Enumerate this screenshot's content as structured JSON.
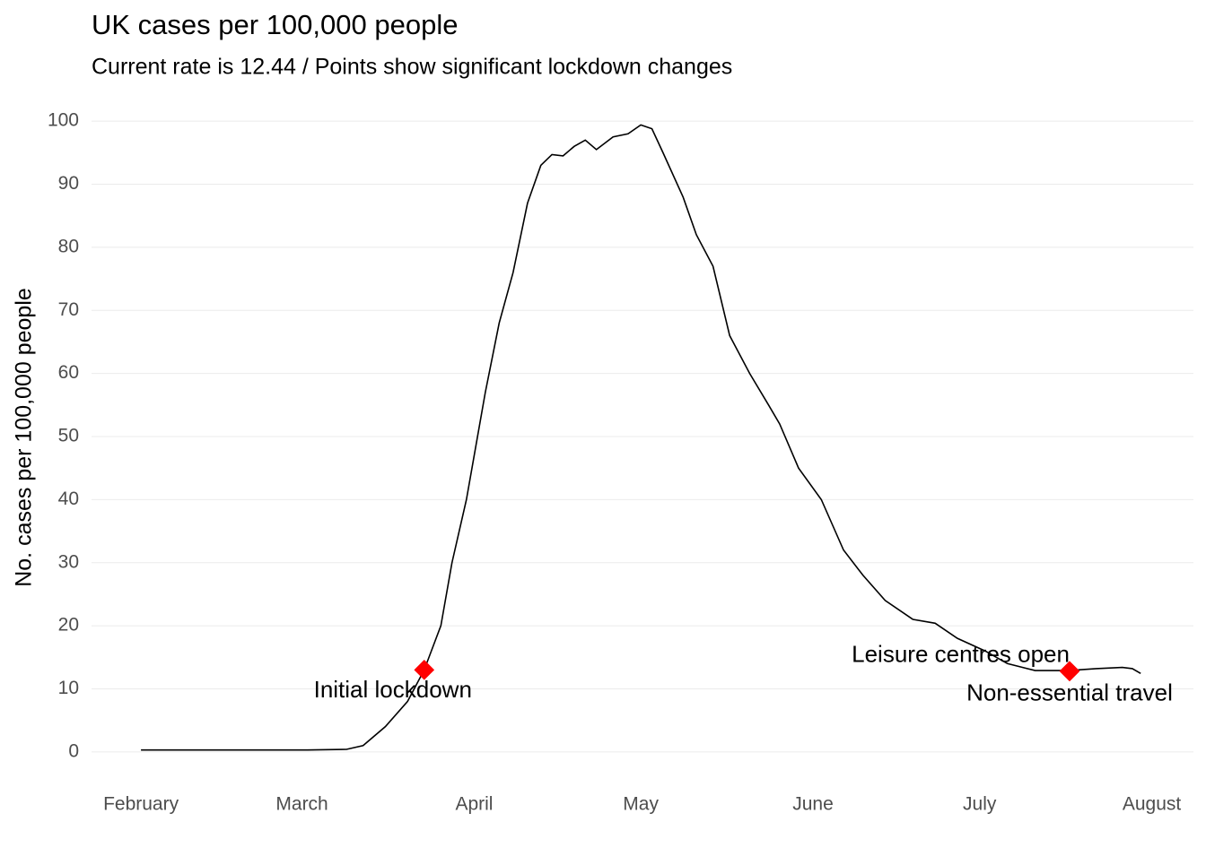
{
  "chart_data": {
    "type": "line",
    "title": "UK cases per 100,000 people",
    "subtitle": "Current rate is  12.44  /  Points show significant lockdown changes",
    "y_label": "No. cases per 100,000 people",
    "x": [
      0,
      10,
      20,
      30,
      37,
      40,
      44,
      48,
      51,
      54,
      56,
      58.6,
      62,
      64.5,
      67,
      69.6,
      72,
      74,
      76,
      78,
      80,
      82,
      85,
      87.7,
      90,
      92,
      94,
      97.6,
      100,
      103,
      106,
      109.6,
      113,
      115,
      118.4,
      122.5,
      126.5,
      130,
      134,
      139,
      143,
      147,
      152,
      156,
      161,
      167,
      172,
      176.7,
      178.5,
      180
    ],
    "values": [
      0.3,
      0.3,
      0.3,
      0.3,
      0.4,
      1,
      4,
      8,
      13,
      20,
      30,
      40,
      57,
      68,
      76,
      87,
      93,
      94.7,
      94.5,
      96,
      97,
      95.5,
      97.5,
      98,
      99.4,
      98.8,
      95,
      88,
      82,
      77,
      66,
      60,
      55,
      52,
      45,
      40,
      32,
      28,
      24,
      21,
      20.4,
      18,
      16,
      14,
      12.9,
      12.9,
      13.2,
      13.4,
      13.2,
      12.44
    ],
    "color": "#000000",
    "events": [
      {
        "label": "Initial lockdown",
        "x": 51,
        "y": 13
      },
      {
        "label": "Leisure centres open",
        "x": 167.2,
        "y": 12.8
      },
      {
        "label": "Non-essential travel",
        "x": 167.2,
        "y": 12.8
      }
    ],
    "event_color": "#ff0000",
    "xlim": [
      -8.9,
      189.5
    ],
    "xticks": [
      {
        "value": 0,
        "label": "February"
      },
      {
        "value": 29,
        "label": "March"
      },
      {
        "value": 60,
        "label": "April"
      },
      {
        "value": 90,
        "label": "May"
      },
      {
        "value": 121,
        "label": "June"
      },
      {
        "value": 151,
        "label": "July"
      },
      {
        "value": 182,
        "label": "August"
      }
    ],
    "ylim": [
      -5,
      105
    ],
    "yticks": [
      0,
      10,
      20,
      30,
      40,
      50,
      60,
      70,
      80,
      90,
      100
    ],
    "grid": true
  }
}
